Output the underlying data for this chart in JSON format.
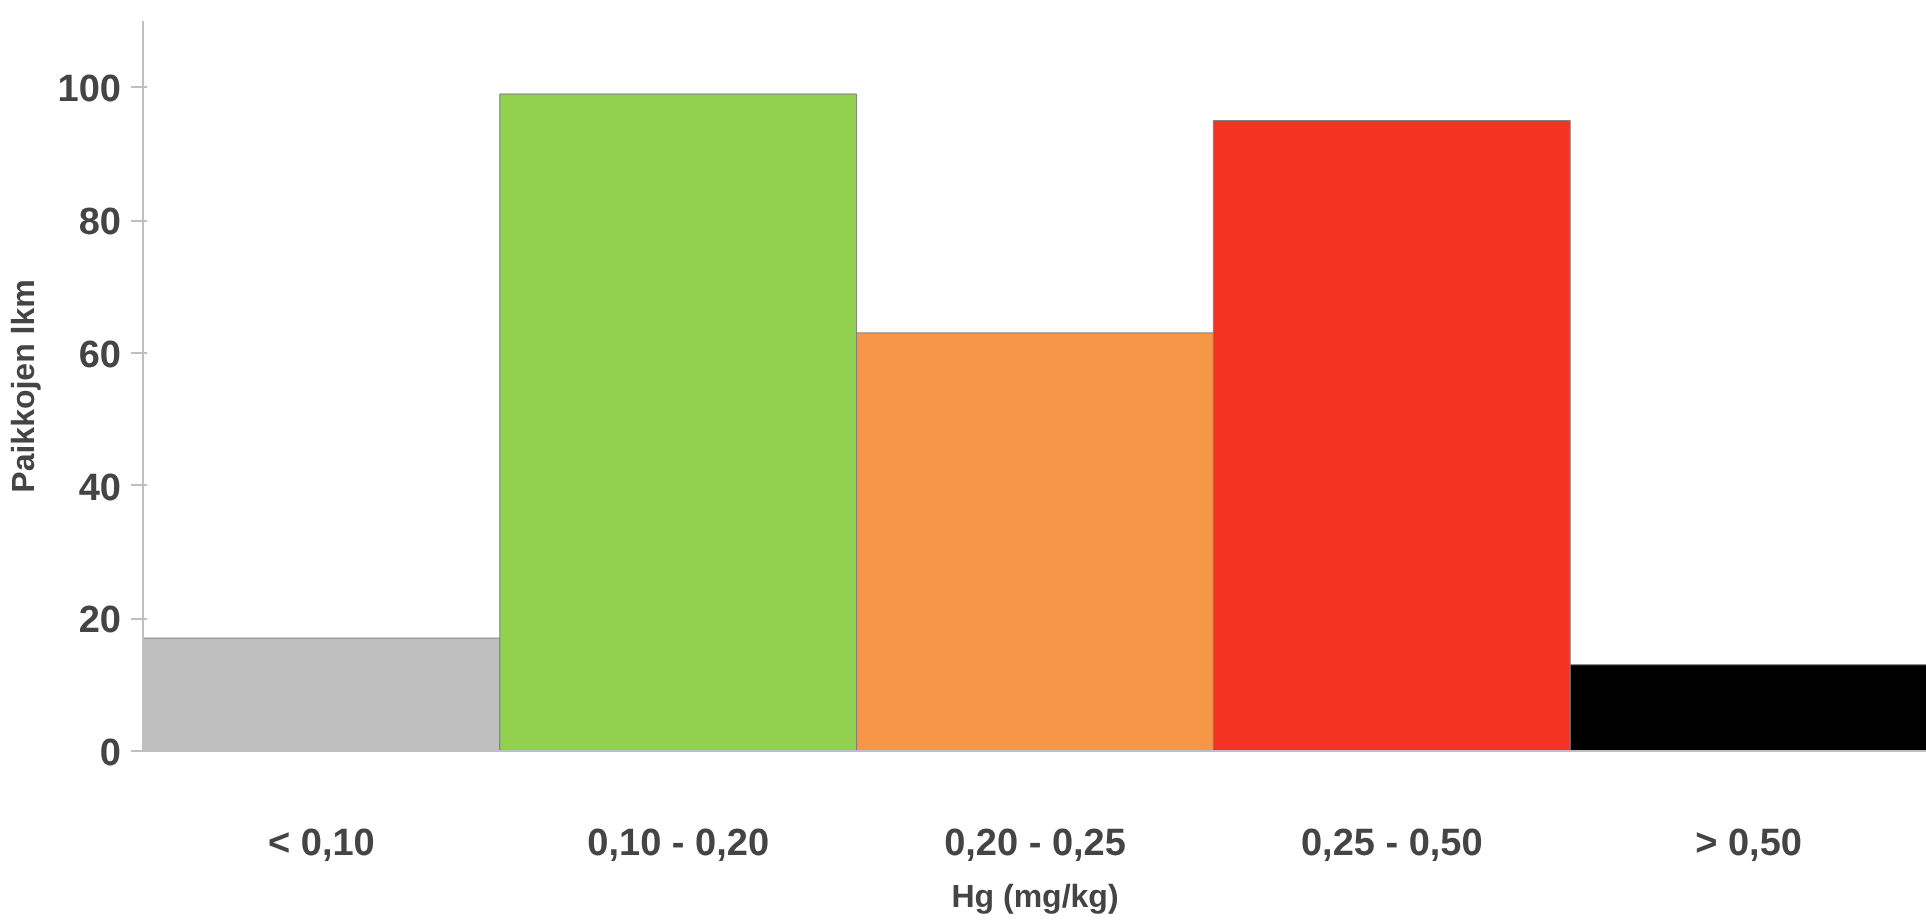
{
  "chart_data": {
    "type": "bar",
    "xlabel": "Hg (mg/kg)",
    "ylabel": "Paikkojen lkm",
    "categories": [
      "< 0,10",
      "0,10 - 0,20",
      "0,20 - 0,25",
      "0,25 - 0,50",
      "> 0,50"
    ],
    "values": [
      17,
      99,
      63,
      95,
      13
    ],
    "colors": [
      "#bfbfbf",
      "#92d050",
      "#f79646",
      "#f53322",
      "#000000"
    ],
    "ylim": [
      0,
      110
    ],
    "yticks": [
      0,
      20,
      40,
      60,
      80,
      100
    ],
    "grid": false
  }
}
